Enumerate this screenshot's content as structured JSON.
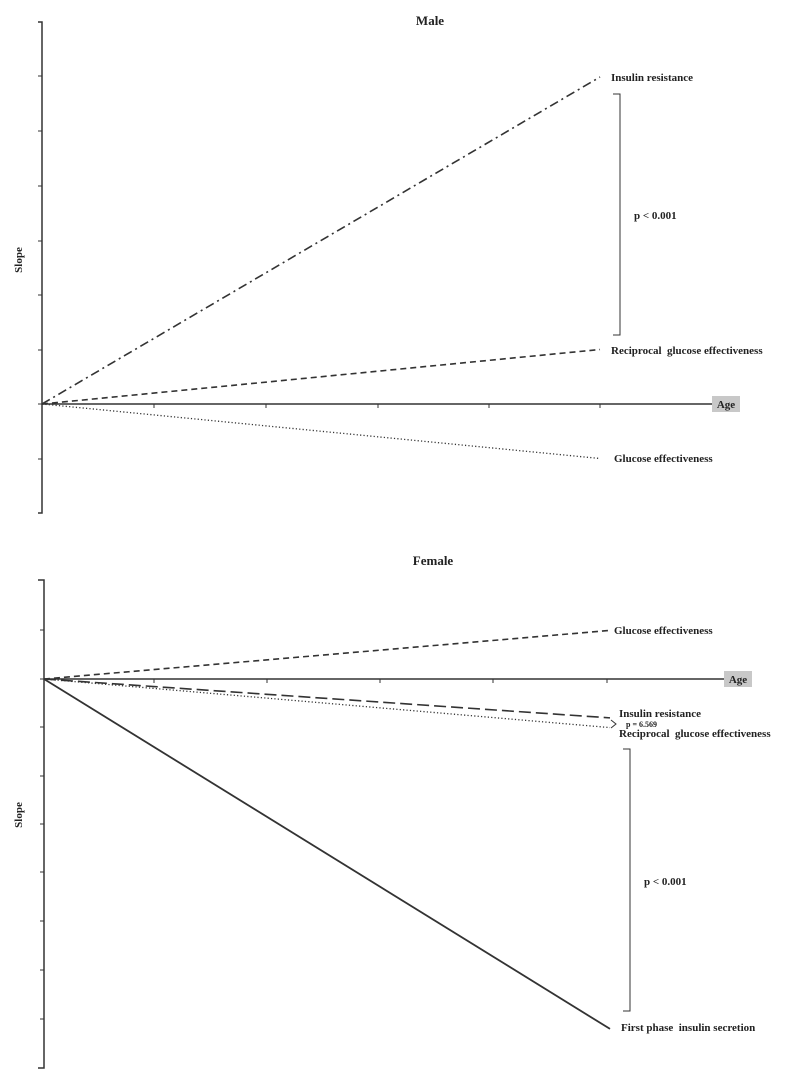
{
  "chart_data": [
    {
      "type": "line",
      "title": "Male",
      "ylabel": "Slope",
      "xlabel": "Age",
      "series": [
        {
          "name": "Insulin resistance",
          "style": "dash-dot",
          "x": [
            0,
            1
          ],
          "y": [
            0,
            6.0
          ]
        },
        {
          "name": "Reciprocal  glucose effectiveness",
          "style": "dashed",
          "x": [
            0,
            1
          ],
          "y": [
            0,
            1.0
          ]
        },
        {
          "name": "Glucose effectiveness",
          "style": "dotted",
          "x": [
            0,
            1
          ],
          "y": [
            0,
            -1.0
          ]
        }
      ],
      "annotations": [
        {
          "text": "p < 0.001",
          "between": [
            "Insulin resistance",
            "Reciprocal  glucose effectiveness"
          ]
        }
      ]
    },
    {
      "type": "line",
      "title": "Female",
      "ylabel": "Slope",
      "xlabel": "Age",
      "series": [
        {
          "name": "Glucose effectiveness",
          "style": "dashed",
          "x": [
            0,
            1
          ],
          "y": [
            0,
            1.0
          ]
        },
        {
          "name": "Insulin resistance",
          "style": "long-dash",
          "x": [
            0,
            1
          ],
          "y": [
            0,
            -0.8
          ]
        },
        {
          "name": "Reciprocal  glucose effectiveness",
          "style": "dotted",
          "x": [
            0,
            1
          ],
          "y": [
            0,
            -1.0
          ]
        },
        {
          "name": "First phase  insulin secretion",
          "style": "solid",
          "x": [
            0,
            1
          ],
          "y": [
            0,
            -7.2
          ]
        }
      ],
      "annotations": [
        {
          "text": "p = 6.569",
          "between": [
            "Insulin resistance",
            "Reciprocal  glucose effectiveness"
          ]
        },
        {
          "text": "p < 0.001",
          "between": [
            "Reciprocal  glucose effectiveness",
            "First phase  insulin secretion"
          ]
        }
      ]
    }
  ]
}
